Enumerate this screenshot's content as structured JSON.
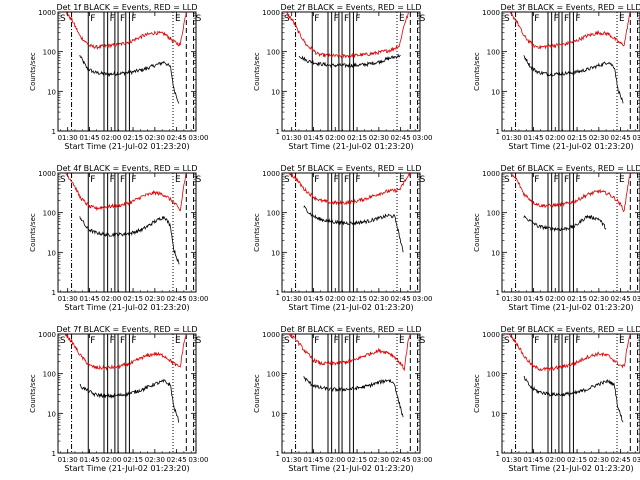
{
  "chart_data": {
    "type": "line",
    "y_scale": "log",
    "ylim": [
      1,
      1000
    ],
    "xlim_seconds_after_start": [
      0,
      5700
    ],
    "start_time_label": "Start Time (21-Jul-02 01:23:20)",
    "ylabel": "Counts/sec",
    "x_ticks": [
      {
        "label": "01:30",
        "sec": 400
      },
      {
        "label": "01:45",
        "sec": 1300
      },
      {
        "label": "02:00",
        "sec": 2200
      },
      {
        "label": "02:15",
        "sec": 3100
      },
      {
        "label": "02:30",
        "sec": 4000
      },
      {
        "label": "02:45",
        "sec": 4900
      },
      {
        "label": "03:00",
        "sec": 5800
      }
    ],
    "y_ticks": [
      {
        "label": "1",
        "value": 1
      },
      {
        "label": "10",
        "value": 10
      },
      {
        "label": "100",
        "value": 100
      },
      {
        "label": "1000",
        "value": 1000
      }
    ],
    "markers": [
      {
        "label": "S",
        "sec": 0,
        "style": "dash"
      },
      {
        "label": "",
        "sec": 560,
        "style": "dashdot"
      },
      {
        "label": "F",
        "sec": 1250,
        "style": "solid"
      },
      {
        "label": "",
        "sec": 1900,
        "style": "solid"
      },
      {
        "label": "F",
        "sec": 2050,
        "style": "solid"
      },
      {
        "label": "",
        "sec": 2350,
        "style": "solid"
      },
      {
        "label": "F",
        "sec": 2480,
        "style": "solid"
      },
      {
        "label": "",
        "sec": 2800,
        "style": "solid"
      },
      {
        "label": "F",
        "sec": 2950,
        "style": "solid"
      },
      {
        "label": "E",
        "sec": 4750,
        "style": "dot"
      },
      {
        "label": "",
        "sec": 5300,
        "style": "dash"
      },
      {
        "label": "S",
        "sec": 5600,
        "style": "dash"
      }
    ],
    "panels": [
      {
        "title": "Det 1f BLACK = Events, RED = LLD",
        "series": [
          {
            "name": "Events",
            "color": "#000000",
            "x": [
              900,
              1200,
              1500,
              2000,
              2500,
              3000,
              3500,
              4000,
              4400,
              4650,
              4780,
              5000
            ],
            "y": [
              80,
              38,
              30,
              27,
              28,
              30,
              35,
              45,
              55,
              40,
              12,
              5
            ]
          },
          {
            "name": "LLD",
            "color": "#dd0000",
            "x": [
              300,
              600,
              900,
              1300,
              1600,
              2000,
              2500,
              3000,
              3500,
              4000,
              4400,
              4700,
              4900,
              5050,
              5200,
              5300
            ],
            "y": [
              1000,
              600,
              250,
              140,
              130,
              140,
              150,
              180,
              250,
              300,
              280,
              200,
              160,
              150,
              500,
              1000
            ]
          }
        ]
      },
      {
        "title": "Det 2f BLACK = Events, RED = LLD",
        "series": [
          {
            "name": "Events",
            "color": "#000000",
            "x": [
              700,
              1000,
              1500,
              2000,
              2500,
              3000,
              3500,
              4000,
              4500,
              4900
            ],
            "y": [
              80,
              60,
              50,
              45,
              45,
              45,
              48,
              55,
              70,
              80
            ]
          },
          {
            "name": "LLD",
            "color": "#dd0000",
            "x": [
              150,
              450,
              700,
              1000,
              1500,
              2000,
              2500,
              3000,
              3500,
              4000,
              4500,
              4850,
              5050,
              5250
            ],
            "y": [
              1000,
              600,
              300,
              150,
              85,
              78,
              78,
              80,
              85,
              95,
              110,
              140,
              500,
              1000
            ]
          }
        ]
      },
      {
        "title": "Det 3f BLACK = Events, RED = LLD",
        "series": [
          {
            "name": "Events",
            "color": "#000000",
            "x": [
              900,
              1200,
              1500,
              2000,
              2500,
              3000,
              3500,
              4000,
              4400,
              4650,
              4780,
              5000
            ],
            "y": [
              80,
              40,
              30,
              27,
              28,
              30,
              35,
              45,
              55,
              40,
              12,
              5
            ]
          },
          {
            "name": "LLD",
            "color": "#dd0000",
            "x": [
              300,
              600,
              900,
              1300,
              1600,
              2000,
              2500,
              3000,
              3500,
              4000,
              4400,
              4700,
              4900,
              5050,
              5200,
              5300
            ],
            "y": [
              1000,
              600,
              250,
              140,
              130,
              140,
              150,
              180,
              250,
              300,
              280,
              200,
              160,
              150,
              500,
              1000
            ]
          }
        ]
      },
      {
        "title": "Det 4f BLACK = Events, RED = LLD",
        "series": [
          {
            "name": "Events",
            "color": "#000000",
            "x": [
              900,
              1200,
              1500,
              2000,
              2500,
              3000,
              3500,
              4000,
              4400,
              4650,
              4780,
              5000
            ],
            "y": [
              80,
              40,
              32,
              28,
              28,
              30,
              38,
              60,
              80,
              45,
              12,
              5
            ]
          },
          {
            "name": "LLD",
            "color": "#dd0000",
            "x": [
              300,
              600,
              900,
              1300,
              1600,
              2000,
              2500,
              3000,
              3500,
              4000,
              4400,
              4700,
              4900,
              5050,
              5200,
              5300
            ],
            "y": [
              1000,
              600,
              250,
              140,
              130,
              140,
              150,
              180,
              260,
              320,
              280,
              200,
              150,
              110,
              500,
              1000
            ]
          }
        ]
      },
      {
        "title": "Det 5f BLACK = Events, RED = LLD",
        "series": [
          {
            "name": "Events",
            "color": "#000000",
            "x": [
              900,
              1200,
              1500,
              2000,
              2500,
              3000,
              3500,
              4000,
              4400,
              4650,
              4780,
              5000
            ],
            "y": [
              140,
              90,
              70,
              60,
              55,
              55,
              60,
              72,
              85,
              80,
              40,
              10
            ]
          },
          {
            "name": "LLD",
            "color": "#dd0000",
            "x": [
              300,
              600,
              900,
              1300,
              1600,
              2000,
              2500,
              3000,
              3500,
              4000,
              4400,
              4700,
              4900,
              5050,
              5200,
              5300
            ],
            "y": [
              1000,
              700,
              400,
              250,
              200,
              180,
              175,
              190,
              230,
              300,
              350,
              360,
              400,
              600,
              800,
              1000
            ]
          }
        ]
      },
      {
        "title": "Det 6f BLACK = Events, RED = LLD",
        "series": [
          {
            "name": "Events",
            "color": "#000000",
            "x": [
              900,
              1200,
              1500,
              2000,
              2500,
              3000,
              3500,
              4000,
              4300
            ],
            "y": [
              80,
              60,
              45,
              40,
              38,
              45,
              80,
              70,
              40
            ]
          },
          {
            "name": "LLD",
            "color": "#dd0000",
            "x": [
              300,
              600,
              900,
              1300,
              1600,
              2000,
              2500,
              3000,
              3500,
              4000,
              4400,
              4700,
              4900,
              5050,
              5200,
              5300
            ],
            "y": [
              1000,
              700,
              300,
              180,
              150,
              150,
              160,
              190,
              280,
              350,
              300,
              220,
              160,
              110,
              500,
              1000
            ]
          }
        ]
      },
      {
        "title": "Det 7f BLACK = Events, RED = LLD",
        "series": [
          {
            "name": "Events",
            "color": "#000000",
            "x": [
              900,
              1200,
              1500,
              2000,
              2500,
              3000,
              3500,
              4000,
              4400,
              4650,
              4780,
              5000
            ],
            "y": [
              50,
              38,
              30,
              27,
              28,
              32,
              40,
              55,
              65,
              50,
              15,
              6
            ]
          },
          {
            "name": "LLD",
            "color": "#dd0000",
            "x": [
              300,
              600,
              900,
              1300,
              1600,
              2000,
              2500,
              3000,
              3500,
              4000,
              4400,
              4700,
              4900,
              5050,
              5200,
              5300
            ],
            "y": [
              1000,
              600,
              300,
              160,
              140,
              140,
              150,
              180,
              260,
              320,
              280,
              200,
              160,
              150,
              600,
              1000
            ]
          }
        ]
      },
      {
        "title": "Det 8f BLACK = Events, RED = LLD",
        "series": [
          {
            "name": "Events",
            "color": "#000000",
            "x": [
              900,
              1200,
              1500,
              2000,
              2500,
              3000,
              3500,
              4000,
              4400,
              4650,
              4780,
              5000
            ],
            "y": [
              80,
              55,
              45,
              40,
              40,
              42,
              48,
              60,
              70,
              55,
              25,
              8
            ]
          },
          {
            "name": "LLD",
            "color": "#dd0000",
            "x": [
              300,
              600,
              900,
              1300,
              1600,
              2000,
              2500,
              3000,
              3500,
              4000,
              4400,
              4700,
              4900,
              5050,
              5200,
              5300
            ],
            "y": [
              1000,
              700,
              400,
              220,
              180,
              180,
              190,
              220,
              300,
              380,
              340,
              250,
              180,
              130,
              600,
              1000
            ]
          }
        ]
      },
      {
        "title": "Det 9f BLACK = Events, RED = LLD",
        "series": [
          {
            "name": "Events",
            "color": "#000000",
            "x": [
              900,
              1200,
              1500,
              2000,
              2500,
              3000,
              3500,
              4000,
              4400,
              4650,
              4780,
              5000
            ],
            "y": [
              80,
              45,
              35,
              30,
              30,
              32,
              40,
              55,
              65,
              50,
              15,
              6
            ]
          },
          {
            "name": "LLD",
            "color": "#dd0000",
            "x": [
              300,
              600,
              900,
              1300,
              1600,
              2000,
              2500,
              3000,
              3500,
              4000,
              4400,
              4700,
              4900,
              5050,
              5200,
              5300
            ],
            "y": [
              1000,
              600,
              280,
              150,
              130,
              130,
              150,
              180,
              260,
              320,
              280,
              200,
              160,
              150,
              600,
              1000
            ]
          }
        ]
      }
    ]
  }
}
